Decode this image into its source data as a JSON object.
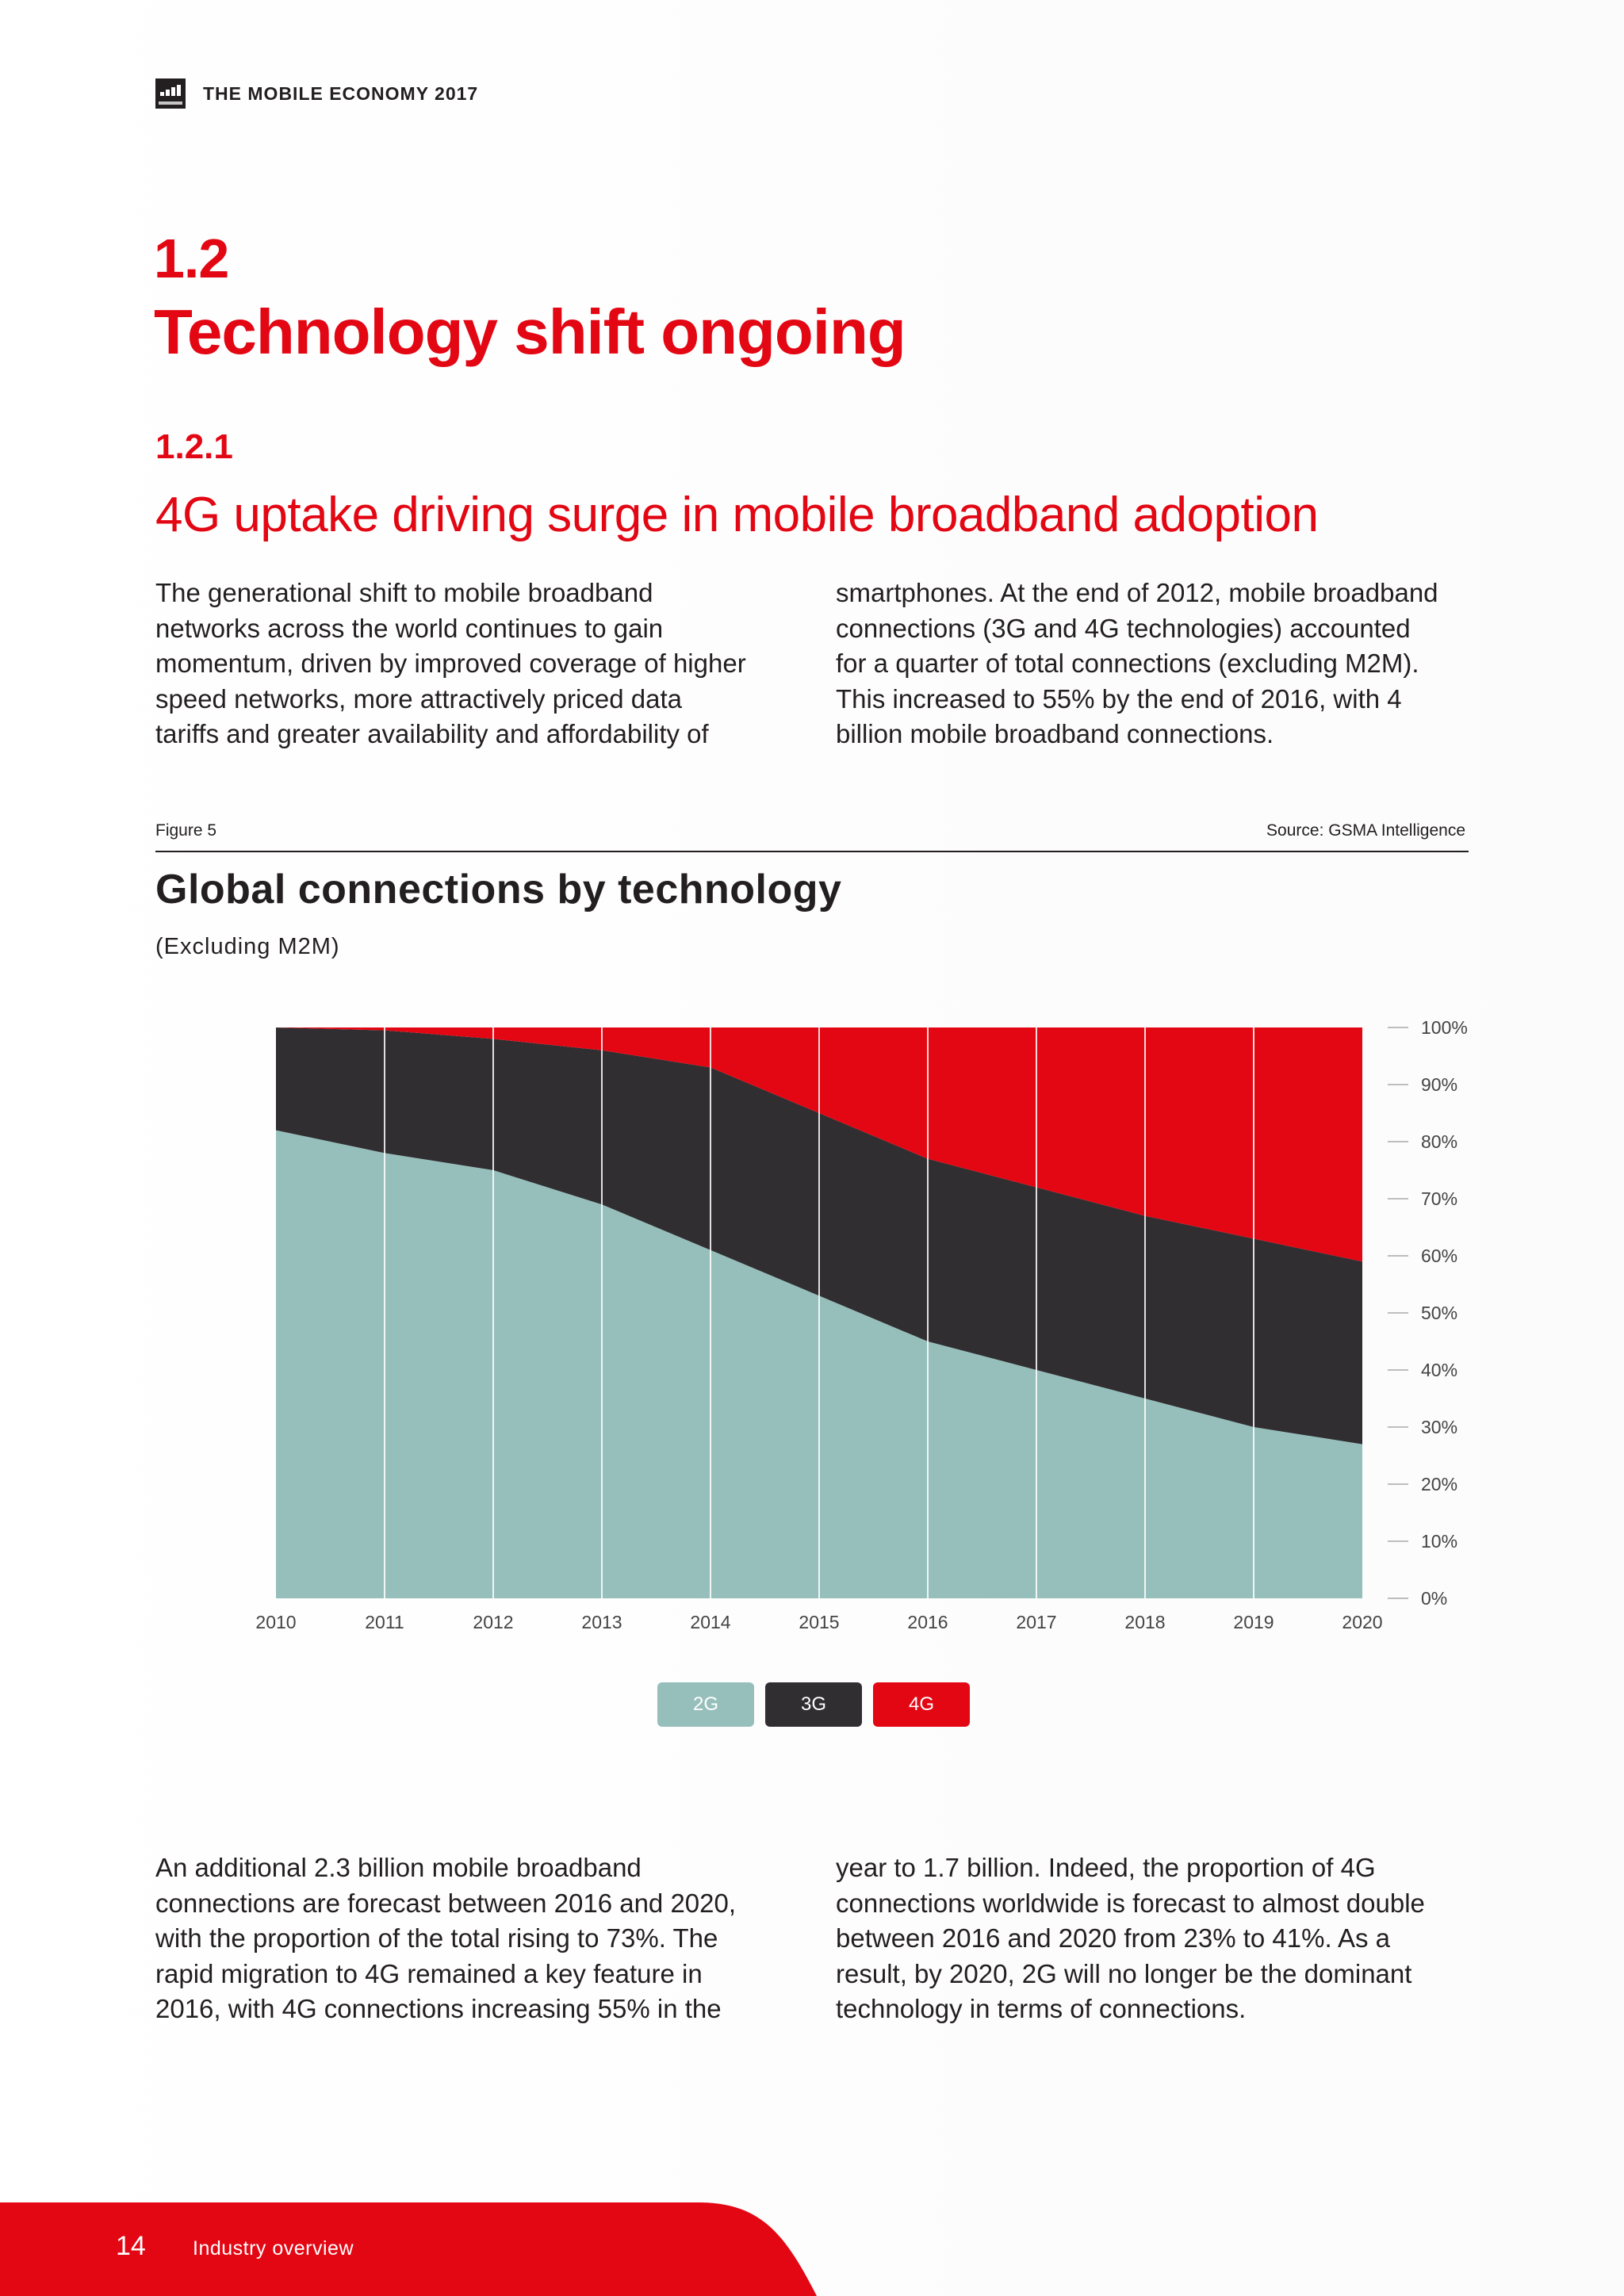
{
  "header": {
    "title": "THE MOBILE ECONOMY 2017"
  },
  "section": {
    "number": "1.2",
    "title": "Technology shift ongoing"
  },
  "subsection": {
    "number": "1.2.1",
    "title": "4G uptake driving surge in mobile broadband adoption"
  },
  "paragraphs": {
    "p1": "The generational shift to mobile broadband\nnetworks across the world continues to gain\nmomentum, driven by improved coverage of higher\nspeed networks, more attractively priced data\ntariffs and greater availability and affordability of",
    "p2": "smartphones. At the end of 2012, mobile broadband\nconnections (3G and 4G technologies) accounted\nfor a quarter of total connections (excluding M2M).\nThis increased to 55% by the end of 2016, with 4\nbillion mobile broadband connections.",
    "p3": "An additional 2.3 billion mobile broadband\nconnections are forecast between 2016 and 2020,\nwith the proportion of the total rising to 73%. The\nrapid migration to 4G remained a key feature in\n2016, with 4G connections increasing 55% in the",
    "p4": "year to 1.7 billion. Indeed, the proportion of 4G\nconnections worldwide is forecast to almost double\nbetween 2016 and 2020 from 23% to 41%. As a\nresult, by 2020, 2G will no longer be the dominant\ntechnology in terms of connections."
  },
  "figure": {
    "label": "Figure 5",
    "source": "Source: GSMA Intelligence"
  },
  "chart_data": {
    "type": "area",
    "stacked": true,
    "title": "Global connections by technology",
    "subtitle": "(Excluding M2M)",
    "categories": [
      "2010",
      "2011",
      "2012",
      "2013",
      "2014",
      "2015",
      "2016",
      "2017",
      "2018",
      "2019",
      "2020"
    ],
    "series": [
      {
        "name": "2G",
        "color": "#96bfbc",
        "values": [
          82,
          78,
          75,
          69,
          61,
          53,
          45,
          40,
          35,
          30,
          27
        ]
      },
      {
        "name": "3G",
        "color": "#302e31",
        "values": [
          18,
          21.5,
          23,
          27,
          32,
          32,
          32,
          32,
          32,
          33,
          32
        ]
      },
      {
        "name": "4G",
        "color": "#e30613",
        "values": [
          0,
          0.5,
          2,
          4,
          7,
          15,
          23,
          28,
          33,
          37,
          41
        ]
      }
    ],
    "yticks": [
      "0%",
      "10%",
      "20%",
      "30%",
      "40%",
      "50%",
      "60%",
      "70%",
      "80%",
      "90%",
      "100%"
    ],
    "ylim": [
      0,
      100
    ],
    "grid": "vertical",
    "legend_position": "bottom-center"
  },
  "footer": {
    "page": "14",
    "section": "Industry overview",
    "color": "#e30613"
  }
}
